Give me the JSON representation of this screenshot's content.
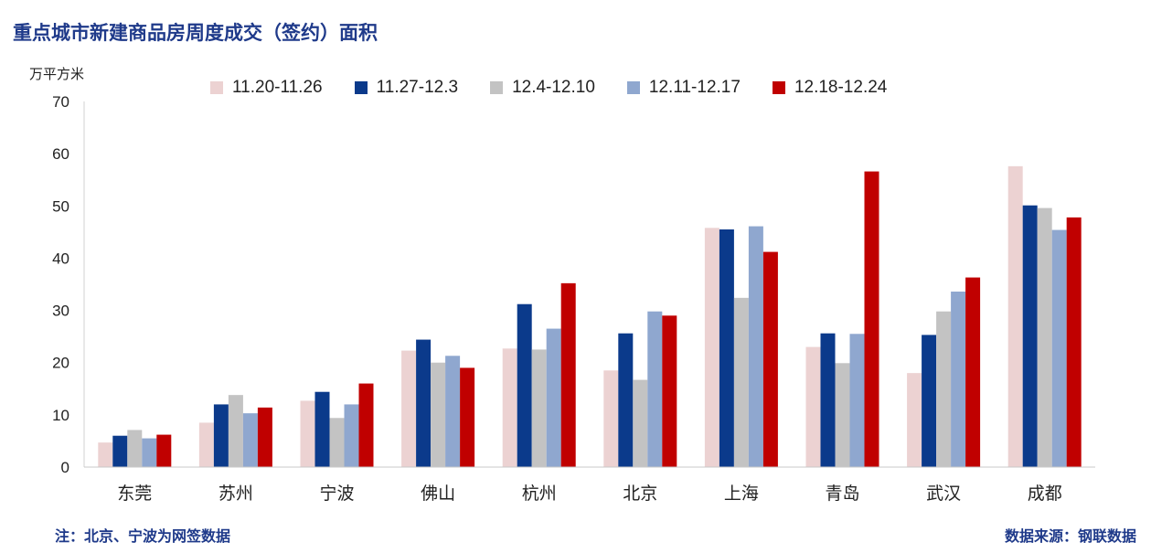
{
  "page": {
    "title": "重点城市新建商品房周度成交（签约）面积",
    "unit_label": "万平方米",
    "footnote": "注：北京、宁波为网签数据",
    "source": "数据来源：钢联数据"
  },
  "chart_data": {
    "type": "bar",
    "title": "重点城市新建商品房周度成交（签约）面积",
    "ylabel": "万平方米",
    "xlabel": "",
    "ylim": [
      0,
      70
    ],
    "yticks": [
      0,
      10,
      20,
      30,
      40,
      50,
      60,
      70
    ],
    "grid": false,
    "legend_position": "top",
    "categories": [
      "东莞",
      "苏州",
      "宁波",
      "佛山",
      "杭州",
      "北京",
      "上海",
      "青岛",
      "武汉",
      "成都"
    ],
    "series": [
      {
        "name": "11.20-11.26",
        "color": "#ecd2d2",
        "values": [
          4.7,
          8.5,
          12.7,
          22.3,
          22.7,
          18.5,
          45.8,
          23.0,
          18.0,
          57.6
        ]
      },
      {
        "name": "11.27-12.3",
        "color": "#0b3a8b",
        "values": [
          6.0,
          12.0,
          14.4,
          24.4,
          31.2,
          25.6,
          45.5,
          25.6,
          25.3,
          50.1
        ]
      },
      {
        "name": "12.4-12.10",
        "color": "#c3c3c3",
        "values": [
          7.1,
          13.8,
          9.4,
          20.0,
          22.5,
          16.7,
          32.4,
          19.9,
          29.8,
          49.6
        ]
      },
      {
        "name": "12.11-12.17",
        "color": "#8fa7cf",
        "values": [
          5.5,
          10.3,
          12.0,
          21.3,
          26.5,
          29.8,
          46.1,
          25.5,
          33.6,
          45.4
        ]
      },
      {
        "name": "12.18-12.24",
        "color": "#c00000",
        "values": [
          6.2,
          11.4,
          16.0,
          19.0,
          35.2,
          29.0,
          41.2,
          56.6,
          36.3,
          47.8
        ]
      }
    ]
  }
}
